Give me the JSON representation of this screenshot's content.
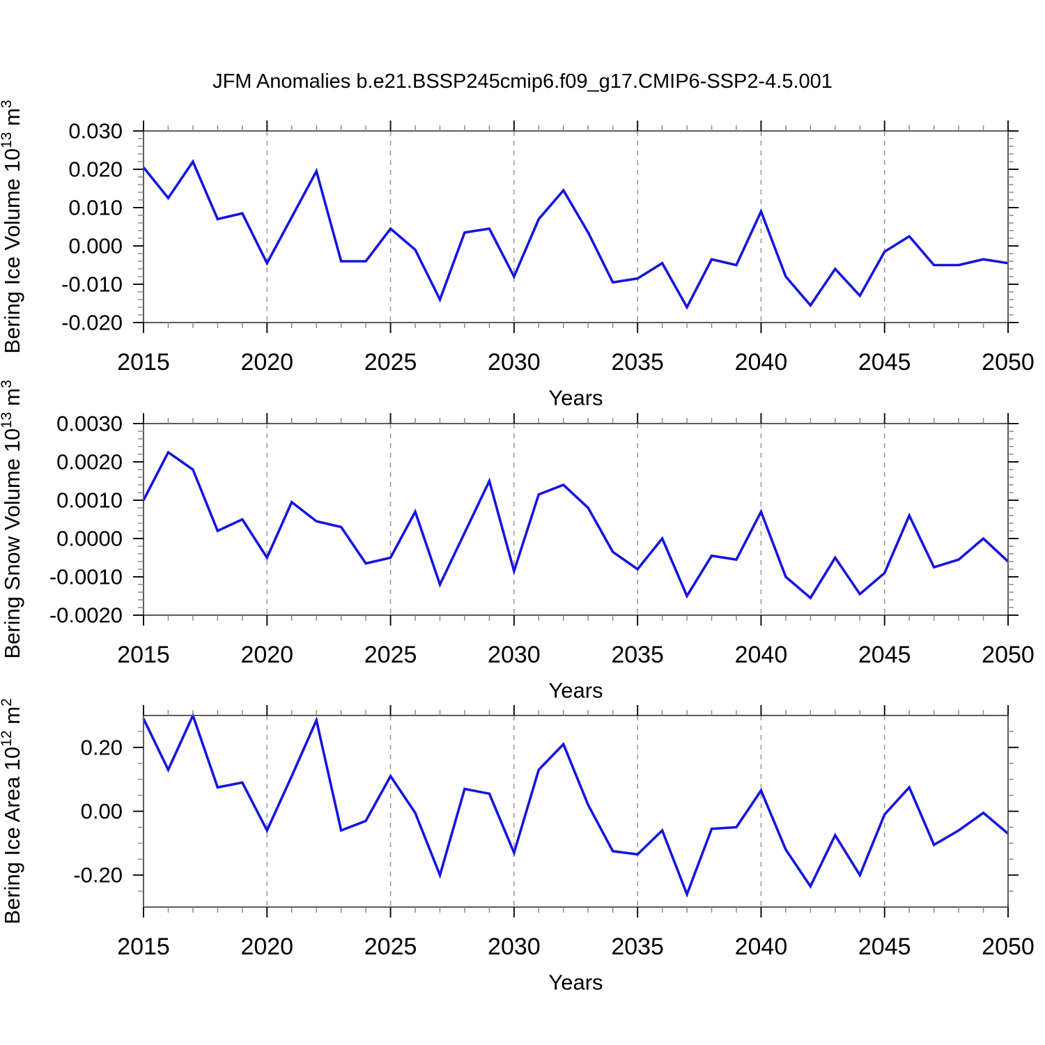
{
  "title": "JFM Anomalies b.e21.BSSP245cmip6.f09_g17.CMIP6-SSP2-4.5.001",
  "colors": {
    "line": "#1414e1",
    "axis_border": "#5a5a5a",
    "tick_major": "#111111",
    "tick_minor": "#8a8a8a",
    "gridline": "#9b9b9b",
    "text": "#000000",
    "background": "#ffffff"
  },
  "chart_data": [
    {
      "type": "line",
      "name": "bering-ice-volume",
      "ylabel_plain": "Bering Ice Volume 10^13 m^3",
      "ylabel_parts": [
        {
          "t": "Bering Ice Volume 10"
        },
        {
          "t": "13",
          "sup": true
        },
        {
          "t": " m"
        },
        {
          "t": "3",
          "sup": true
        }
      ],
      "xlabel": "Years",
      "xlim": [
        2015,
        2050
      ],
      "ylim": [
        -0.02,
        0.03
      ],
      "x_major_ticks": [
        2015,
        2020,
        2025,
        2030,
        2035,
        2040,
        2045,
        2050
      ],
      "x_tick_labels": [
        "2015",
        "2020",
        "2025",
        "2030",
        "2035",
        "2040",
        "2045",
        "2050"
      ],
      "x_minor_step": 1,
      "y_major_ticks": [
        {
          "v": 0.03,
          "label": "0.030"
        },
        {
          "v": 0.02,
          "label": "0.020"
        },
        {
          "v": 0.01,
          "label": "0.010"
        },
        {
          "v": 0.0,
          "label": "0.000"
        },
        {
          "v": -0.01,
          "label": "-0.010"
        },
        {
          "v": -0.02,
          "label": "-0.020"
        }
      ],
      "y_minor_step": 0.002,
      "gridline_years": [
        2020,
        2025,
        2030,
        2035,
        2040,
        2045
      ],
      "grid": "vertical-dashed",
      "legend": "none",
      "x": [
        2015,
        2016,
        2017,
        2018,
        2019,
        2020,
        2021,
        2022,
        2023,
        2024,
        2025,
        2026,
        2027,
        2028,
        2029,
        2030,
        2031,
        2032,
        2033,
        2034,
        2035,
        2036,
        2037,
        2038,
        2039,
        2040,
        2041,
        2042,
        2043,
        2044,
        2045,
        2046,
        2047,
        2048,
        2049,
        2050
      ],
      "values": [
        0.0205,
        0.0125,
        0.022,
        0.007,
        0.0085,
        -0.0045,
        0.0075,
        0.0195,
        -0.004,
        -0.004,
        0.0045,
        -0.001,
        -0.014,
        0.0035,
        0.0045,
        -0.008,
        0.007,
        0.0145,
        0.0035,
        -0.0095,
        -0.0085,
        -0.0045,
        -0.016,
        -0.0035,
        -0.005,
        0.009,
        -0.008,
        -0.0155,
        -0.006,
        -0.013,
        -0.0015,
        0.0025,
        -0.005,
        -0.005,
        -0.0035,
        -0.0045
      ]
    },
    {
      "type": "line",
      "name": "bering-snow-volume",
      "ylabel_plain": "Bering Snow Volume 10^13 m^3",
      "ylabel_parts": [
        {
          "t": "Bering Snow Volume 10"
        },
        {
          "t": "13",
          "sup": true
        },
        {
          "t": " m"
        },
        {
          "t": "3",
          "sup": true
        }
      ],
      "xlabel": "Years",
      "xlim": [
        2015,
        2050
      ],
      "ylim": [
        -0.002,
        0.003
      ],
      "x_major_ticks": [
        2015,
        2020,
        2025,
        2030,
        2035,
        2040,
        2045,
        2050
      ],
      "x_tick_labels": [
        "2015",
        "2020",
        "2025",
        "2030",
        "2035",
        "2040",
        "2045",
        "2050"
      ],
      "x_minor_step": 1,
      "y_major_ticks": [
        {
          "v": 0.003,
          "label": "0.0030"
        },
        {
          "v": 0.002,
          "label": "0.0020"
        },
        {
          "v": 0.001,
          "label": "0.0010"
        },
        {
          "v": 0.0,
          "label": "0.0000"
        },
        {
          "v": -0.001,
          "label": "-0.0010"
        },
        {
          "v": -0.002,
          "label": "-0.0020"
        }
      ],
      "y_minor_step": 0.0002,
      "gridline_years": [
        2020,
        2025,
        2030,
        2035,
        2040,
        2045
      ],
      "grid": "vertical-dashed",
      "legend": "none",
      "x": [
        2015,
        2016,
        2017,
        2018,
        2019,
        2020,
        2021,
        2022,
        2023,
        2024,
        2025,
        2026,
        2027,
        2028,
        2029,
        2030,
        2031,
        2032,
        2033,
        2034,
        2035,
        2036,
        2037,
        2038,
        2039,
        2040,
        2041,
        2042,
        2043,
        2044,
        2045,
        2046,
        2047,
        2048,
        2049,
        2050
      ],
      "values": [
        0.001,
        0.00225,
        0.0018,
        0.0002,
        0.0005,
        -0.0005,
        0.00095,
        0.00045,
        0.0003,
        -0.00065,
        -0.0005,
        0.0007,
        -0.0012,
        0.00015,
        0.0015,
        -0.00085,
        0.00115,
        0.0014,
        0.0008,
        -0.00035,
        -0.0008,
        0,
        -0.0015,
        -0.00045,
        -0.00055,
        0.0007,
        -0.001,
        -0.00155,
        -0.0005,
        -0.00145,
        -0.0009,
        0.0006,
        -0.00075,
        -0.00055,
        0,
        -0.0006
      ]
    },
    {
      "type": "line",
      "name": "bering-ice-area",
      "ylabel_plain": "Bering Ice Area 10^12 m^2",
      "ylabel_parts": [
        {
          "t": "Bering Ice Area 10"
        },
        {
          "t": "12",
          "sup": true
        },
        {
          "t": " m"
        },
        {
          "t": "2",
          "sup": true
        }
      ],
      "xlabel": "Years",
      "xlim": [
        2015,
        2050
      ],
      "ylim": [
        -0.3,
        0.3
      ],
      "x_major_ticks": [
        2015,
        2020,
        2025,
        2030,
        2035,
        2040,
        2045,
        2050
      ],
      "x_tick_labels": [
        "2015",
        "2020",
        "2025",
        "2030",
        "2035",
        "2040",
        "2045",
        "2050"
      ],
      "x_minor_step": 1,
      "y_major_ticks": [
        {
          "v": 0.2,
          "label": "0.20"
        },
        {
          "v": 0.0,
          "label": "0.00"
        },
        {
          "v": -0.2,
          "label": "-0.20"
        }
      ],
      "y_minor_step": 0.05,
      "gridline_years": [
        2020,
        2025,
        2030,
        2035,
        2040,
        2045
      ],
      "grid": "vertical-dashed",
      "legend": "none",
      "x": [
        2015,
        2016,
        2017,
        2018,
        2019,
        2020,
        2021,
        2022,
        2023,
        2024,
        2025,
        2026,
        2027,
        2028,
        2029,
        2030,
        2031,
        2032,
        2033,
        2034,
        2035,
        2036,
        2037,
        2038,
        2039,
        2040,
        2041,
        2042,
        2043,
        2044,
        2045,
        2046,
        2047,
        2048,
        2049,
        2050
      ],
      "values": [
        0.29,
        0.13,
        0.3,
        0.075,
        0.09,
        -0.06,
        0.11,
        0.285,
        -0.06,
        -0.03,
        0.11,
        -0.005,
        -0.2,
        0.07,
        0.055,
        -0.13,
        0.13,
        0.21,
        0.02,
        -0.125,
        -0.135,
        -0.06,
        -0.26,
        -0.055,
        -0.05,
        0.065,
        -0.12,
        -0.235,
        -0.075,
        -0.2,
        -0.01,
        0.075,
        -0.105,
        -0.06,
        -0.005,
        -0.07
      ]
    }
  ]
}
